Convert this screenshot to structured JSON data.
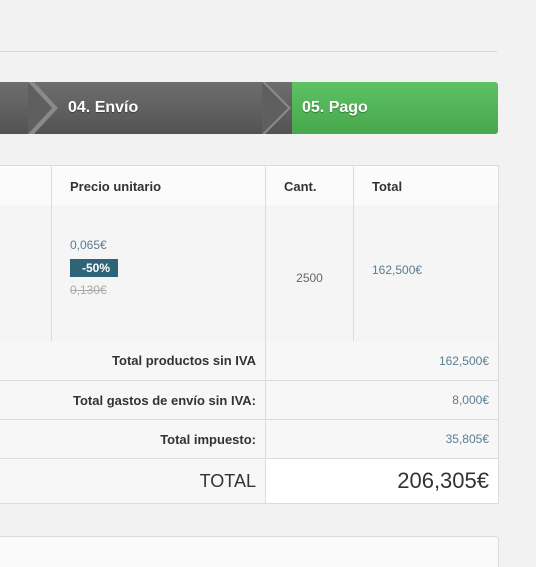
{
  "steps": {
    "envio": "04. Envío",
    "pago": "05. Pago"
  },
  "colors": {
    "active_step": "#4caf50",
    "inactive_step": "#5f5f5f",
    "discount_badge": "#2e6478"
  },
  "table": {
    "headers": {
      "unit_price": "Precio unitario",
      "qty": "Cant.",
      "total": "Total"
    },
    "product": {
      "price_new": "0,065€",
      "discount": "-50%",
      "price_old": "0,130€",
      "qty": "2500",
      "total": "162,500€"
    }
  },
  "summary": {
    "products_label": "Total productos sin IVA",
    "products_value": "162,500€",
    "shipping_label": "Total gastos de envío sin IVA:",
    "shipping_value": "8,000€",
    "tax_label": "Total impuesto:",
    "tax_value": "35,805€",
    "total_label": "TOTAL",
    "total_value": "206,305€"
  }
}
